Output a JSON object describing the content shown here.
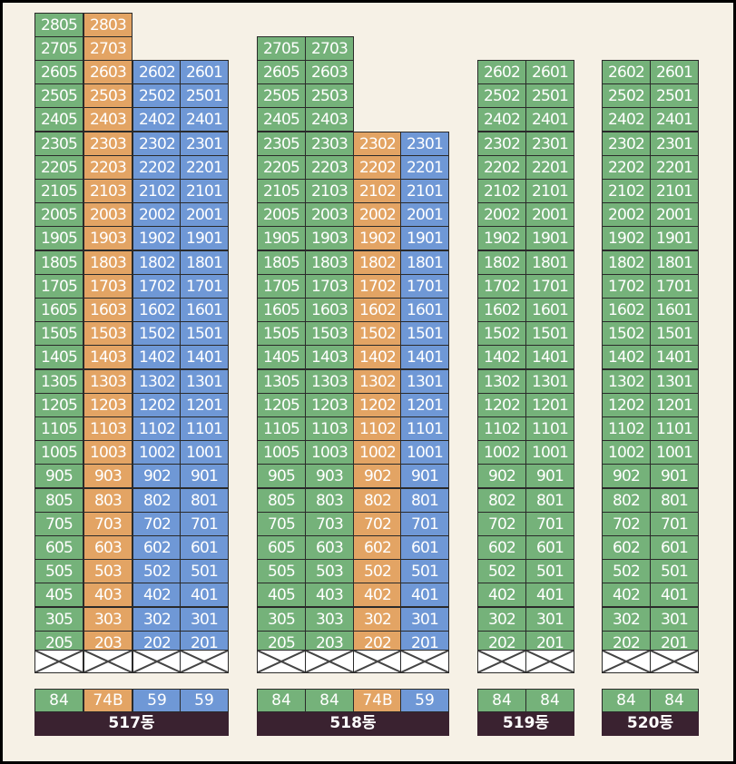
{
  "colors": {
    "green": "#75b27a",
    "orange": "#e3a464",
    "blue": "#6f98d6",
    "label_bg": "#3a2230"
  },
  "buildings": [
    {
      "name": "517동",
      "types": [
        "84",
        "74B",
        "59",
        "59"
      ],
      "columns": [
        {
          "suffix": "05",
          "color": "green",
          "top_floor": 28
        },
        {
          "suffix": "03",
          "color": "orange",
          "top_floor": 28
        },
        {
          "suffix": "02",
          "color": "blue",
          "top_floor": 26
        },
        {
          "suffix": "01",
          "color": "blue",
          "top_floor": 26
        }
      ]
    },
    {
      "name": "518동",
      "types": [
        "84",
        "84",
        "74B",
        "59"
      ],
      "columns": [
        {
          "suffix": "05",
          "color": "green",
          "top_floor": 27
        },
        {
          "suffix": "03",
          "color": "green",
          "top_floor": 27
        },
        {
          "suffix": "02",
          "color": "orange",
          "top_floor": 23
        },
        {
          "suffix": "01",
          "color": "blue",
          "top_floor": 23
        }
      ]
    },
    {
      "name": "519동",
      "types": [
        "84",
        "84"
      ],
      "columns": [
        {
          "suffix": "02",
          "color": "green",
          "top_floor": 26
        },
        {
          "suffix": "01",
          "color": "green",
          "top_floor": 26
        }
      ]
    },
    {
      "name": "520동",
      "types": [
        "84",
        "84"
      ],
      "columns": [
        {
          "suffix": "02",
          "color": "green",
          "top_floor": 26
        },
        {
          "suffix": "01",
          "color": "green",
          "top_floor": 26
        }
      ]
    }
  ],
  "bottom_floor": 2
}
